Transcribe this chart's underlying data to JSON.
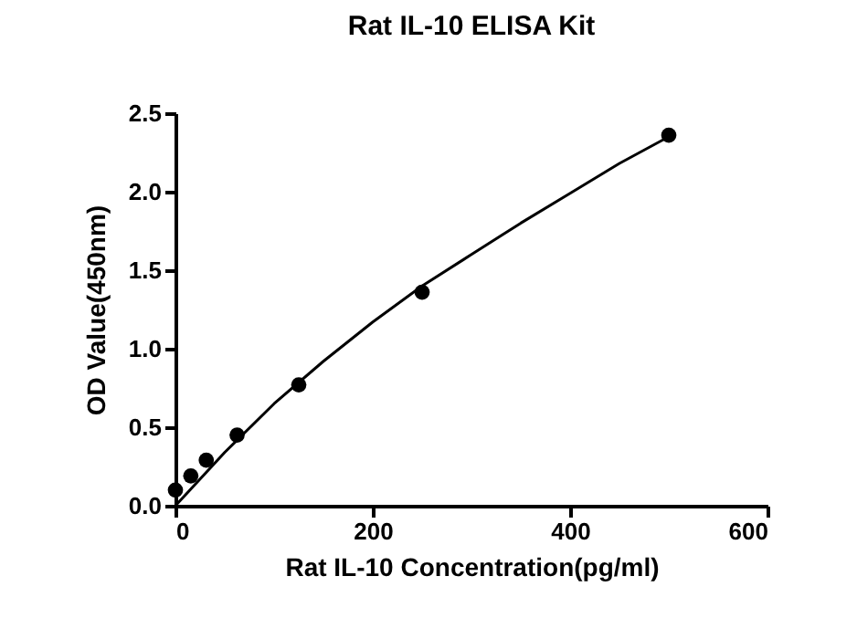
{
  "chart_data": {
    "type": "scatter",
    "title": "Rat IL-10 ELISA Kit",
    "xlabel": "Rat IL-10 Concentration(pg/ml)",
    "ylabel": "OD Value(450nm)",
    "xlim": [
      0,
      600
    ],
    "xticks": [
      0,
      200,
      400,
      600
    ],
    "ylim": [
      0,
      2.5
    ],
    "yticks": [
      {
        "value": 0,
        "label": "0.0"
      },
      0.5,
      {
        "value": 1,
        "label": "1.0"
      },
      1.5,
      {
        "value": 2,
        "label": "2.0"
      },
      2.5
    ],
    "grid": false,
    "marker": "circle",
    "series": [
      {
        "color": "#000000",
        "x": [
          0,
          15.6,
          31.25,
          62.5,
          125,
          250,
          500
        ],
        "values": [
          0.1,
          0.19,
          0.29,
          0.45,
          0.77,
          1.36,
          2.36
        ]
      },
      {
        "type": "line",
        "color": "#000000",
        "marker": "none",
        "line_style": "solid",
        "x": [
          0,
          50,
          100,
          150,
          200,
          250,
          300,
          350,
          400,
          450,
          500
        ],
        "values": [
          0,
          0.34,
          0.65,
          0.92,
          1.17,
          1.4,
          1.6,
          1.8,
          1.99,
          2.18,
          2.35
        ]
      }
    ]
  }
}
